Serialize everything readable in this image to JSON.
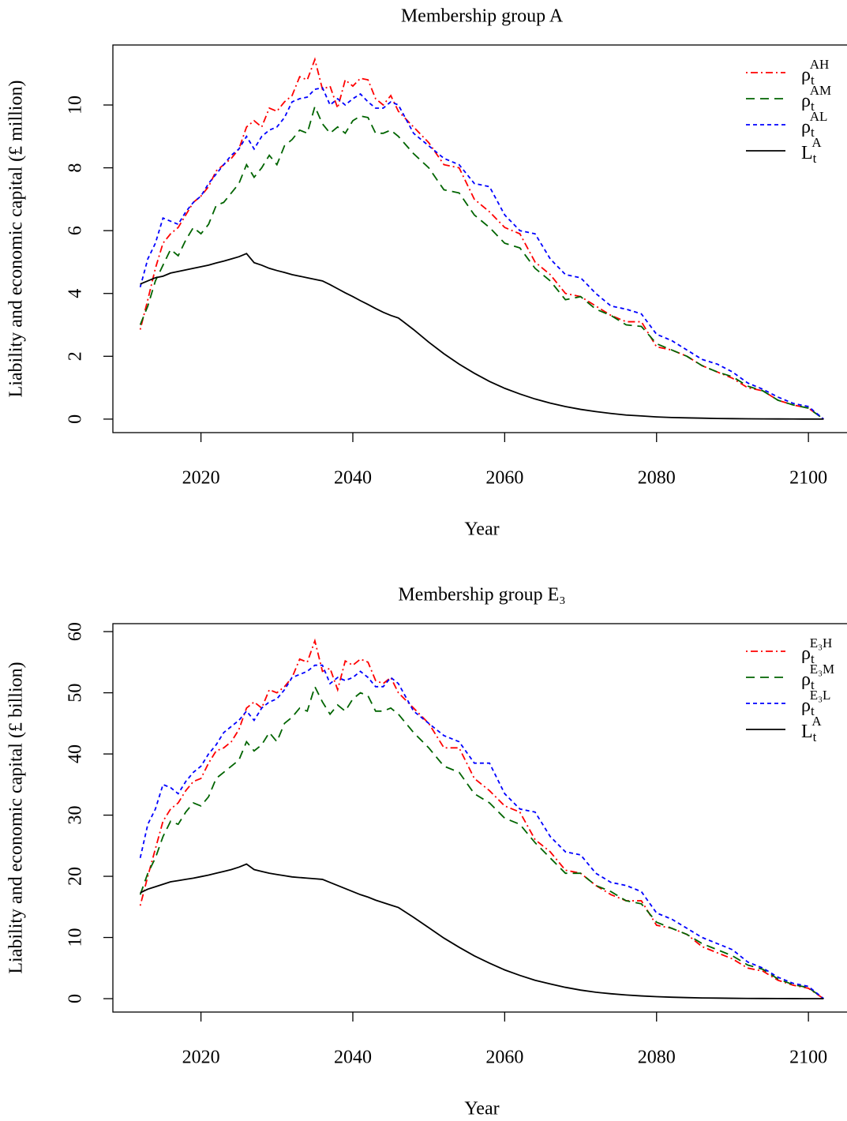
{
  "chart_data": [
    {
      "type": "line",
      "title": "Membership group A",
      "xlabel": "Year",
      "ylabel": "Liability and economic capital  (£ million)",
      "x": [
        2012,
        2013,
        2014,
        2015,
        2016,
        2017,
        2018,
        2019,
        2020,
        2021,
        2022,
        2023,
        2024,
        2025,
        2026,
        2027,
        2028,
        2029,
        2030,
        2031,
        2032,
        2033,
        2034,
        2035,
        2036,
        2037,
        2038,
        2039,
        2040,
        2041,
        2042,
        2043,
        2044,
        2045,
        2046,
        2048,
        2050,
        2052,
        2054,
        2056,
        2058,
        2060,
        2062,
        2064,
        2066,
        2068,
        2070,
        2072,
        2074,
        2076,
        2078,
        2080,
        2082,
        2084,
        2086,
        2088,
        2090,
        2092,
        2094,
        2096,
        2098,
        2100,
        2102
      ],
      "series": [
        {
          "name": "ρtAH",
          "color": "#ff0000",
          "dash": "dotdash",
          "values": [
            2.85,
            3.8,
            4.8,
            5.6,
            5.9,
            6.1,
            6.5,
            6.9,
            7.1,
            7.4,
            7.9,
            8.1,
            8.3,
            8.6,
            9.3,
            9.5,
            9.3,
            9.9,
            9.8,
            10.1,
            10.3,
            10.9,
            10.8,
            11.45,
            10.5,
            10.6,
            9.9,
            10.8,
            10.6,
            10.85,
            10.8,
            10.2,
            10.0,
            10.3,
            9.8,
            9.3,
            8.8,
            8.1,
            8.0,
            7.0,
            6.6,
            6.1,
            5.9,
            5.0,
            4.6,
            4.0,
            3.9,
            3.6,
            3.3,
            3.1,
            3.1,
            2.3,
            2.2,
            2.0,
            1.7,
            1.5,
            1.3,
            1.0,
            0.9,
            0.6,
            0.45,
            0.35,
            0
          ]
        },
        {
          "name": "ρtAM",
          "color": "#006400",
          "dash": "dashed",
          "values": [
            3.0,
            3.6,
            4.4,
            4.9,
            5.4,
            5.2,
            5.7,
            6.1,
            5.9,
            6.2,
            6.8,
            6.9,
            7.2,
            7.5,
            8.1,
            7.7,
            8.0,
            8.4,
            8.1,
            8.7,
            8.9,
            9.2,
            9.1,
            9.95,
            9.4,
            9.1,
            9.3,
            9.1,
            9.5,
            9.65,
            9.6,
            9.1,
            9.1,
            9.2,
            9.0,
            8.45,
            8.0,
            7.3,
            7.2,
            6.5,
            6.1,
            5.6,
            5.45,
            4.8,
            4.4,
            3.8,
            3.9,
            3.5,
            3.3,
            3.0,
            2.95,
            2.4,
            2.2,
            2.0,
            1.7,
            1.5,
            1.35,
            1.05,
            0.9,
            0.6,
            0.45,
            0.35,
            0
          ]
        },
        {
          "name": "ρtAL",
          "color": "#0000ff",
          "dash": "short",
          "values": [
            4.2,
            5.1,
            5.6,
            6.4,
            6.3,
            6.2,
            6.6,
            6.9,
            7.1,
            7.5,
            7.8,
            8.1,
            8.4,
            8.6,
            9.0,
            8.6,
            9.0,
            9.2,
            9.3,
            9.6,
            10.1,
            10.2,
            10.25,
            10.5,
            10.55,
            10.0,
            10.2,
            10.0,
            10.2,
            10.35,
            10.1,
            9.9,
            9.9,
            10.1,
            10.0,
            9.1,
            8.7,
            8.3,
            8.1,
            7.5,
            7.4,
            6.5,
            6.0,
            5.9,
            5.1,
            4.6,
            4.5,
            4.0,
            3.6,
            3.5,
            3.35,
            2.7,
            2.5,
            2.2,
            1.9,
            1.75,
            1.5,
            1.15,
            0.95,
            0.7,
            0.5,
            0.4,
            0
          ]
        },
        {
          "name": "LtA",
          "color": "#000000",
          "dash": "solid",
          "values": [
            4.3,
            4.4,
            4.5,
            4.55,
            4.65,
            4.7,
            4.75,
            4.8,
            4.85,
            4.9,
            4.97,
            5.03,
            5.1,
            5.17,
            5.27,
            4.98,
            4.9,
            4.8,
            4.73,
            4.67,
            4.6,
            4.55,
            4.5,
            4.45,
            4.4,
            4.28,
            4.15,
            4.02,
            3.9,
            3.77,
            3.65,
            3.52,
            3.4,
            3.3,
            3.22,
            2.85,
            2.45,
            2.08,
            1.75,
            1.46,
            1.2,
            0.98,
            0.8,
            0.64,
            0.51,
            0.4,
            0.31,
            0.24,
            0.18,
            0.13,
            0.1,
            0.07,
            0.05,
            0.04,
            0.03,
            0.02,
            0.015,
            0.01,
            0.007,
            0.005,
            0.003,
            0.002,
            0
          ]
        }
      ],
      "xlim": [
        2008.4,
        2105.6
      ],
      "ylim": [
        -0.43,
        11.91
      ],
      "xticks": [
        2020,
        2040,
        2060,
        2080,
        2100
      ],
      "yticks": [
        0,
        2,
        4,
        6,
        8,
        10
      ],
      "legend": "top-right"
    },
    {
      "type": "line",
      "title": "Membership group E₃",
      "xlabel": "Year",
      "ylabel": "Liability and economic capital  (£ billion)",
      "x": [
        2012,
        2013,
        2014,
        2015,
        2016,
        2017,
        2018,
        2019,
        2020,
        2021,
        2022,
        2023,
        2024,
        2025,
        2026,
        2027,
        2028,
        2029,
        2030,
        2031,
        2032,
        2033,
        2034,
        2035,
        2036,
        2037,
        2038,
        2039,
        2040,
        2041,
        2042,
        2043,
        2044,
        2045,
        2046,
        2048,
        2050,
        2052,
        2054,
        2056,
        2058,
        2060,
        2062,
        2064,
        2066,
        2068,
        2070,
        2072,
        2074,
        2076,
        2078,
        2080,
        2082,
        2084,
        2086,
        2088,
        2090,
        2092,
        2094,
        2096,
        2098,
        2100,
        2102
      ],
      "series": [
        {
          "name": "ρtE₃H",
          "color": "#ff0000",
          "dash": "dotdash",
          "values": [
            15.2,
            20,
            24.5,
            29,
            31,
            32,
            34,
            35.5,
            36,
            38.5,
            40.5,
            41,
            42,
            44,
            47.5,
            48.5,
            47.5,
            50.5,
            50,
            51,
            52.5,
            55.5,
            55,
            58.5,
            53.5,
            54,
            50.5,
            55.2,
            54.5,
            55.5,
            55,
            52,
            51.5,
            52.5,
            50,
            47.5,
            45,
            41,
            41,
            36,
            34,
            31.5,
            30.5,
            26,
            24,
            21,
            20.5,
            18.5,
            17,
            16,
            16,
            12,
            11.5,
            10.5,
            8.5,
            7.5,
            6.5,
            5,
            4.5,
            3,
            2.2,
            1.7,
            0
          ]
        },
        {
          "name": "ρtE₃M",
          "color": "#006400",
          "dash": "dashed",
          "values": [
            17,
            20.5,
            23,
            26.5,
            29,
            28.5,
            30.5,
            32,
            31.5,
            33,
            36,
            37,
            38,
            39,
            42,
            40.5,
            41.5,
            43.5,
            42,
            45,
            46,
            47.5,
            47,
            51,
            48.5,
            46.5,
            48,
            47,
            49,
            50,
            49.5,
            47,
            47,
            47.5,
            46.5,
            43.5,
            41,
            38,
            37,
            33.5,
            32,
            29.5,
            28.5,
            25.5,
            23,
            20.5,
            20.5,
            18.5,
            17.5,
            16,
            15.5,
            12.5,
            11.5,
            10.5,
            9,
            8,
            7,
            5.5,
            4.8,
            3.2,
            2.3,
            1.8,
            0
          ]
        },
        {
          "name": "ρtE₃L",
          "color": "#0000ff",
          "dash": "short",
          "values": [
            23,
            28.5,
            31,
            35,
            34.5,
            33.5,
            35.5,
            37,
            38,
            40,
            41.5,
            43.5,
            44.5,
            45.5,
            47,
            45.5,
            47.5,
            48.5,
            49,
            50.5,
            52.5,
            53,
            53.5,
            54.5,
            54.5,
            51.5,
            52.5,
            52,
            52.5,
            53.5,
            52.5,
            51,
            51,
            52.5,
            51.5,
            47,
            45,
            43,
            42,
            38.5,
            38.5,
            33.5,
            31,
            30.5,
            26.5,
            24,
            23.5,
            20.5,
            19,
            18.5,
            17.5,
            14,
            13,
            11.5,
            10,
            9,
            8,
            6,
            5,
            3.5,
            2.5,
            2,
            0
          ]
        },
        {
          "name": "LtA",
          "color": "#000000",
          "dash": "solid",
          "values": [
            17.3,
            17.9,
            18.3,
            18.7,
            19.1,
            19.3,
            19.5,
            19.7,
            19.95,
            20.2,
            20.5,
            20.8,
            21.1,
            21.5,
            22.0,
            21.1,
            20.8,
            20.5,
            20.3,
            20.1,
            19.9,
            19.8,
            19.7,
            19.6,
            19.5,
            19.0,
            18.5,
            18.0,
            17.5,
            17.0,
            16.6,
            16.1,
            15.7,
            15.3,
            14.9,
            13.3,
            11.6,
            9.9,
            8.4,
            7.0,
            5.8,
            4.7,
            3.8,
            3.0,
            2.4,
            1.85,
            1.4,
            1.05,
            0.8,
            0.6,
            0.45,
            0.33,
            0.24,
            0.17,
            0.12,
            0.09,
            0.06,
            0.04,
            0.03,
            0.02,
            0.01,
            0.005,
            0
          ]
        }
      ],
      "xlim": [
        2008.4,
        2105.6
      ],
      "ylim": [
        -2.19,
        61.3
      ],
      "xticks": [
        2020,
        2040,
        2060,
        2080,
        2100
      ],
      "yticks": [
        0,
        10,
        20,
        30,
        40,
        50,
        60
      ],
      "legend": "top-right"
    }
  ]
}
